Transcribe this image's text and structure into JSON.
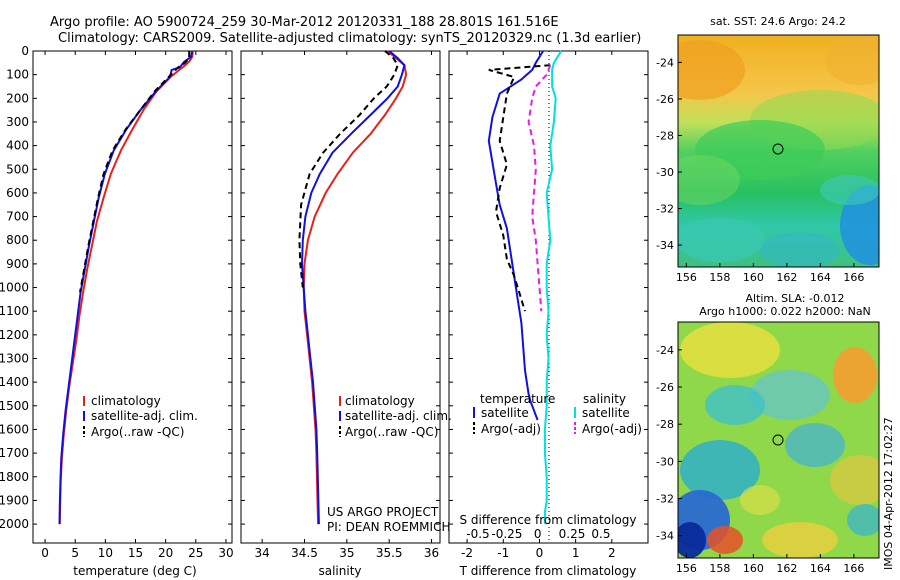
{
  "header": {
    "line1": "Argo profile: AO 5900724_259 30-Mar-2012 20120331_188 28.801S 161.516E",
    "line2": "Climatology: CARS2009. Satellite-adjusted climatology: synTS_20120329.nc (1.3d earlier)"
  },
  "project": {
    "line1": "US ARGO PROJECT",
    "line2": "PI: DEAN ROEMMICH"
  },
  "timestamp": "IMOS 04-Apr-2012 17:02:27",
  "colors": {
    "climatology": "#e8201a",
    "satellite": "#1010e0",
    "argo": "#000000",
    "salinity_satellite": "#00e0e0",
    "salinity_argo": "#e020e0"
  },
  "chart_data": [
    {
      "type": "line",
      "xlabel": "temperature (deg C)",
      "xticks": [
        0,
        5,
        10,
        15,
        20,
        25,
        30
      ],
      "yticks": [
        0,
        100,
        200,
        300,
        400,
        500,
        600,
        700,
        800,
        900,
        1000,
        1100,
        1200,
        1300,
        1400,
        1500,
        1600,
        1700,
        1800,
        1900,
        2000
      ],
      "xlim": [
        -2,
        31
      ],
      "ylim": [
        2080,
        0
      ],
      "legend": [
        "climatology",
        "satellite-adj. clim.",
        "Argo(..raw -QC)"
      ],
      "series": [
        {
          "name": "climatology",
          "color": "#e8201a",
          "x": [
            24.5,
            24.4,
            23.9,
            23.0,
            22.0,
            20.8,
            18.5,
            16.3,
            14.5,
            12.6,
            10.9,
            9.7,
            8.6,
            7.8,
            7.0,
            6.3,
            5.7,
            5.2,
            4.6,
            4.0,
            3.5,
            3.1,
            2.8,
            2.6,
            2.5,
            2.45
          ],
          "y": [
            0,
            25,
            45,
            65,
            85,
            110,
            170,
            250,
            330,
            420,
            520,
            620,
            720,
            820,
            920,
            1020,
            1120,
            1220,
            1320,
            1420,
            1520,
            1620,
            1720,
            1820,
            1920,
            2000
          ]
        },
        {
          "name": "satellite-adj. clim.",
          "color": "#1010e0",
          "x": [
            24.4,
            24.2,
            23.1,
            22.3,
            21.0,
            20.7,
            18.4,
            15.8,
            13.5,
            11.4,
            9.9,
            8.9,
            8.1,
            7.3,
            6.6,
            5.9,
            5.4,
            4.9,
            4.4,
            3.9,
            3.4,
            3.0,
            2.7,
            2.55,
            2.45,
            2.4
          ],
          "y": [
            0,
            25,
            45,
            70,
            80,
            110,
            170,
            250,
            330,
            420,
            520,
            620,
            720,
            820,
            920,
            1020,
            1120,
            1220,
            1320,
            1420,
            1520,
            1620,
            1720,
            1820,
            1920,
            2000
          ]
        },
        {
          "name": "Argo(..raw -QC)",
          "color": "#000000",
          "dash": true,
          "x": [
            23.9,
            23.9,
            23.2,
            22.0,
            20.5,
            18.2,
            15.8,
            13.4,
            11.2,
            9.7,
            8.8,
            8.0,
            7.2,
            6.5,
            5.8
          ],
          "y": [
            0,
            30,
            50,
            70,
            110,
            170,
            250,
            330,
            420,
            520,
            620,
            720,
            820,
            920,
            1020
          ]
        }
      ]
    },
    {
      "type": "line",
      "xlabel": "salinity",
      "xticks": [
        34,
        34.5,
        35,
        35.5,
        36
      ],
      "xlim": [
        33.75,
        36.1
      ],
      "ylim": [
        2080,
        0
      ],
      "legend": [
        "climatology",
        "satellite-adj. clim.",
        "Argo(..raw -QC)"
      ],
      "series": [
        {
          "name": "climatology",
          "color": "#e8201a",
          "x": [
            35.48,
            35.58,
            35.68,
            35.7,
            35.66,
            35.58,
            35.45,
            35.28,
            35.07,
            34.89,
            34.75,
            34.62,
            34.54,
            34.5,
            34.49,
            34.5,
            34.53,
            34.56,
            34.59,
            34.61,
            34.63,
            34.64,
            34.65,
            34.66
          ],
          "y": [
            0,
            30,
            60,
            100,
            150,
            200,
            270,
            350,
            430,
            520,
            600,
            700,
            800,
            900,
            1000,
            1100,
            1200,
            1300,
            1400,
            1500,
            1600,
            1700,
            1850,
            2000
          ]
        },
        {
          "name": "satellite-adj. clim.",
          "color": "#1010e0",
          "x": [
            35.5,
            35.6,
            35.68,
            35.65,
            35.6,
            35.48,
            35.28,
            35.05,
            34.83,
            34.68,
            34.58,
            34.51,
            34.48,
            34.47,
            34.49,
            34.51,
            34.54,
            34.57,
            34.6,
            34.62,
            34.64,
            34.65,
            34.66,
            34.67
          ],
          "y": [
            0,
            30,
            60,
            100,
            150,
            200,
            270,
            350,
            430,
            520,
            600,
            700,
            800,
            900,
            1000,
            1100,
            1200,
            1300,
            1400,
            1500,
            1600,
            1700,
            1850,
            2000
          ]
        },
        {
          "name": "Argo(..raw -QC)",
          "color": "#000000",
          "dash": true,
          "x": [
            35.45,
            35.55,
            35.6,
            35.56,
            35.47,
            35.32,
            35.15,
            34.92,
            34.72,
            34.56,
            34.46,
            34.44,
            34.45,
            34.48
          ],
          "y": [
            0,
            30,
            60,
            100,
            150,
            200,
            270,
            350,
            430,
            520,
            650,
            800,
            900,
            1000
          ]
        }
      ]
    },
    {
      "type": "line",
      "xlabel": "T difference from climatology",
      "xlabel_top": "S difference from climatology",
      "xticks": [
        -2,
        -1,
        0,
        1,
        2
      ],
      "top_ticks": [
        "-0.5",
        "-0.25",
        "0",
        "0.25",
        "0.5"
      ],
      "xlim": [
        -2.5,
        3
      ],
      "ylim": [
        2080,
        0
      ],
      "legend": {
        "temperature_title": "temperature",
        "salinity_title": "salinity",
        "entries": [
          "satellite",
          "Argo(-adj)",
          "satellite",
          "Argo(-adj)"
        ]
      },
      "series": [
        {
          "name": "temperature satellite",
          "color": "#1010e0",
          "x": [
            0.1,
            -0.1,
            -0.2,
            -0.5,
            -1.1,
            -1.3,
            -1.4,
            -1.3,
            -1.2,
            -1.1,
            -0.9,
            -0.8,
            -0.7,
            -0.6,
            -0.5,
            -0.45,
            -0.4,
            -0.35,
            -0.3,
            -0.25,
            -0.2,
            -0.15,
            -0.1,
            -0.05
          ],
          "y": [
            0,
            50,
            80,
            120,
            180,
            280,
            380,
            470,
            560,
            650,
            750,
            850,
            950,
            1050,
            1150,
            1250,
            1350,
            1400,
            1450,
            1480,
            1500,
            1520,
            1540,
            1560
          ]
        },
        {
          "name": "temperature Argo(-adj)",
          "color": "#000000",
          "dash": true,
          "x": [
            0.3,
            -1.4,
            -0.7,
            -0.9,
            -1.0,
            -1.1,
            -0.9,
            -1.1,
            -1.2,
            -1.0,
            -0.9,
            -0.7,
            -0.6,
            -0.5,
            -0.4
          ],
          "y": [
            60,
            80,
            110,
            180,
            280,
            380,
            480,
            580,
            680,
            780,
            880,
            950,
            1000,
            1050,
            1100
          ]
        },
        {
          "name": "salinity satellite",
          "color": "#00e0e0",
          "x": [
            0.6,
            0.4,
            0.35,
            0.35,
            0.45,
            0.4,
            0.3,
            0.35,
            0.2,
            0.25,
            0.3,
            0.2,
            0.2,
            0.25,
            0.2,
            0.25,
            0.2,
            0.2,
            0.15,
            0.15,
            0.2,
            0.2,
            0.15,
            0.15
          ],
          "y": [
            0,
            50,
            80,
            150,
            200,
            300,
            400,
            500,
            600,
            700,
            800,
            900,
            1000,
            1100,
            1200,
            1300,
            1400,
            1500,
            1600,
            1700,
            1800,
            1900,
            1950,
            2000
          ]
        },
        {
          "name": "salinity Argo(-adj)",
          "color": "#e020e0",
          "dash": true,
          "x": [
            0.3,
            0.2,
            -0.1,
            -0.2,
            -0.3,
            -0.15,
            -0.1,
            -0.15,
            -0.2,
            -0.1,
            -0.05,
            0.0,
            0.05
          ],
          "y": [
            60,
            100,
            150,
            200,
            300,
            400,
            500,
            600,
            700,
            800,
            900,
            1000,
            1100
          ]
        }
      ]
    },
    {
      "type": "heatmap",
      "title": "sat. SST: 24.6 Argo: 24.2",
      "xticks": [
        156,
        158,
        160,
        162,
        164,
        166
      ],
      "yticks": [
        -24,
        -26,
        -28,
        -30,
        -32,
        -34
      ],
      "xlim": [
        155.5,
        167.5
      ],
      "ylim": [
        -22.5,
        -35.2
      ],
      "marker": {
        "lon": 161.5,
        "lat": -28.8
      }
    },
    {
      "type": "heatmap",
      "title_line1": "Altim. SLA: -0.012",
      "title_line2": "Argo h1000: 0.022 h2000: NaN",
      "xticks": [
        156,
        158,
        160,
        162,
        164,
        166
      ],
      "yticks": [
        -24,
        -26,
        -28,
        -30,
        -32,
        -34
      ],
      "xlim": [
        155.5,
        167.5
      ],
      "ylim": [
        -22.5,
        -35.2
      ],
      "marker": {
        "lon": 161.5,
        "lat": -28.8
      }
    }
  ]
}
